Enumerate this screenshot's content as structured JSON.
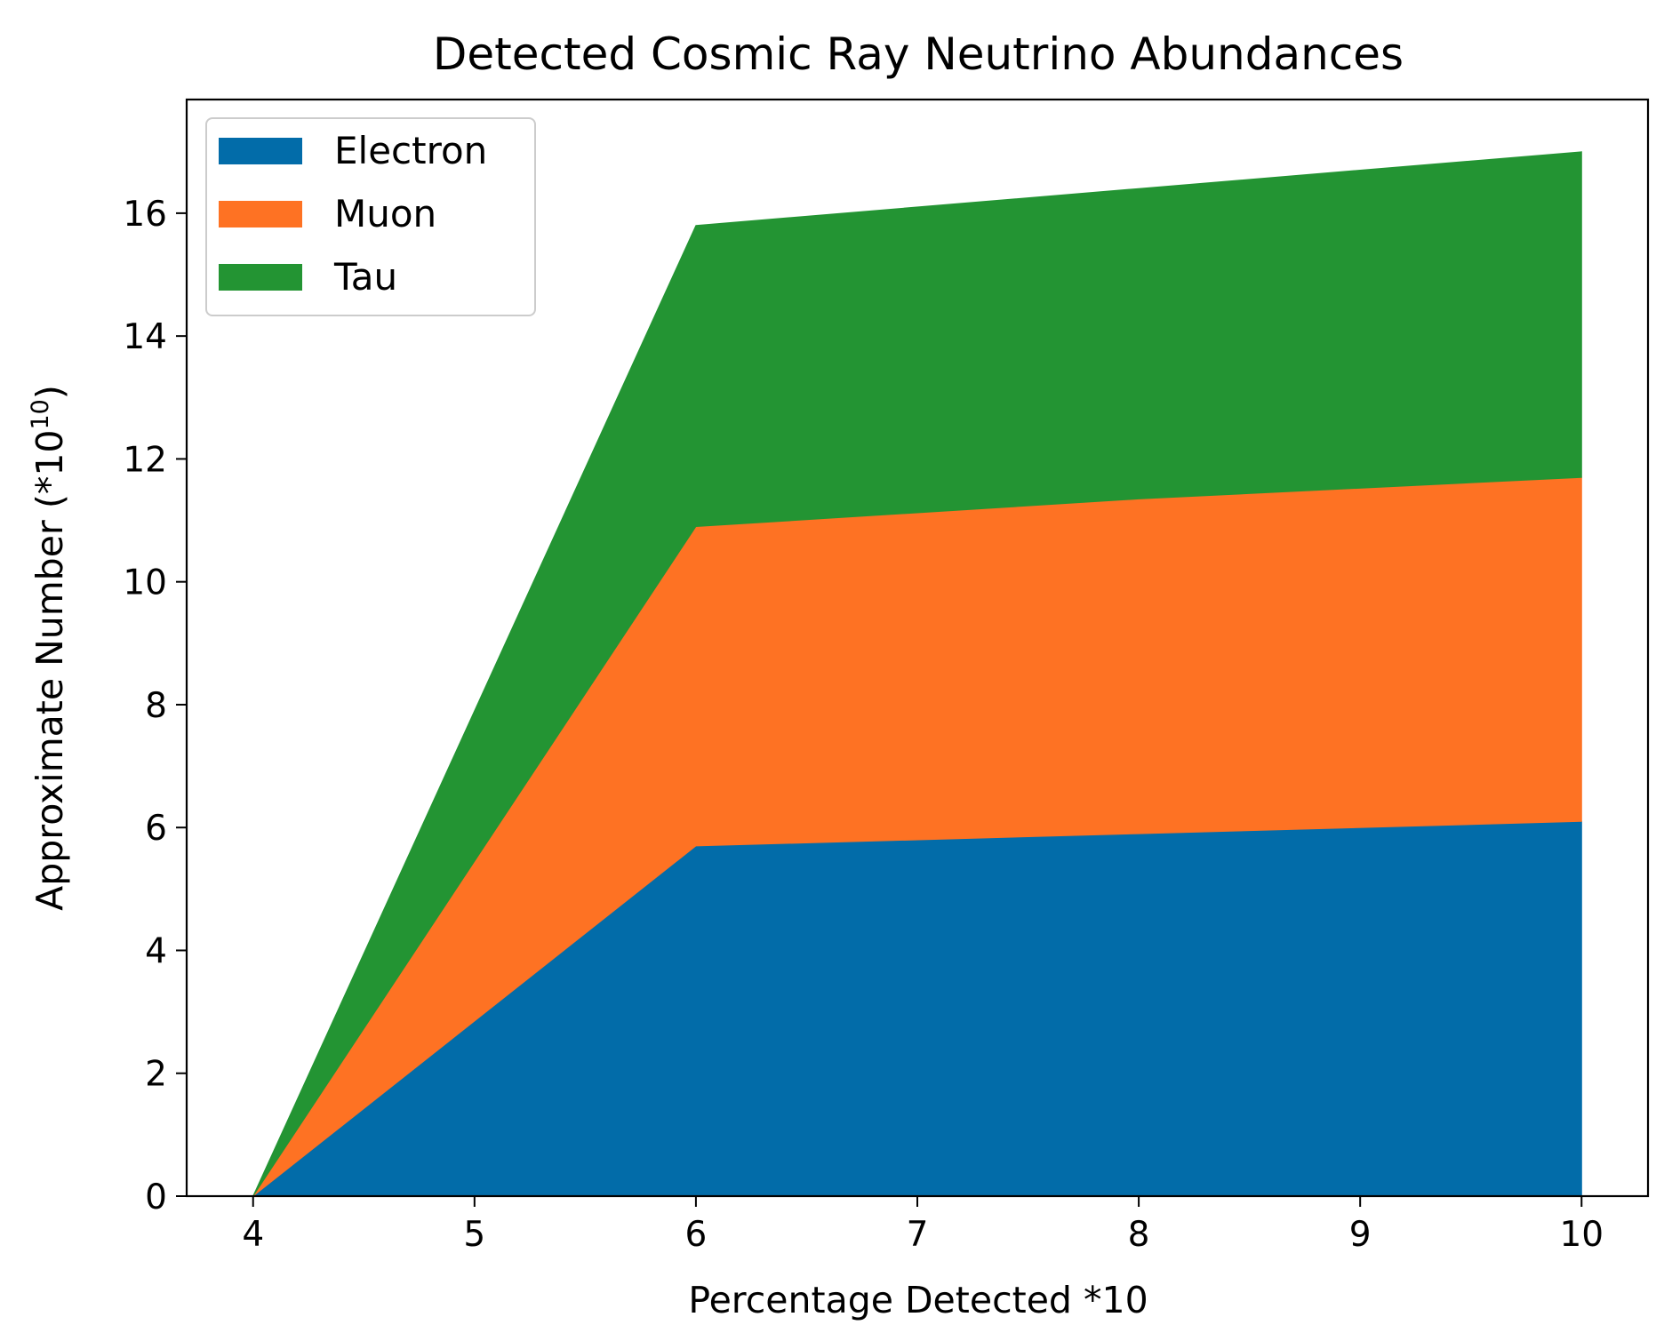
{
  "chart_data": {
    "type": "area",
    "stacked": true,
    "title": "Detected Cosmic Ray Neutrino Abundances",
    "xlabel": "Percentage Detected *10",
    "ylabel": {
      "text": "Approximate Number (*10",
      "superscript": "10",
      "suffix": ")"
    },
    "x": [
      4,
      6,
      8,
      10
    ],
    "xlim": [
      3.7,
      10.3
    ],
    "ylim": [
      0,
      17.85
    ],
    "xticks": [
      4,
      5,
      6,
      7,
      8,
      9,
      10
    ],
    "yticks": [
      0,
      2,
      4,
      6,
      8,
      10,
      12,
      14,
      16
    ],
    "grid": false,
    "legend_position": "top-left",
    "series": [
      {
        "name": "Electron",
        "color": "#026ca9",
        "values": [
          0,
          5.7,
          5.9,
          6.1
        ]
      },
      {
        "name": "Muon",
        "color": "#fe7223",
        "values": [
          0,
          5.2,
          5.45,
          5.6
        ]
      },
      {
        "name": "Tau",
        "color": "#239433",
        "values": [
          0,
          4.9,
          5.05,
          5.3
        ]
      }
    ]
  }
}
